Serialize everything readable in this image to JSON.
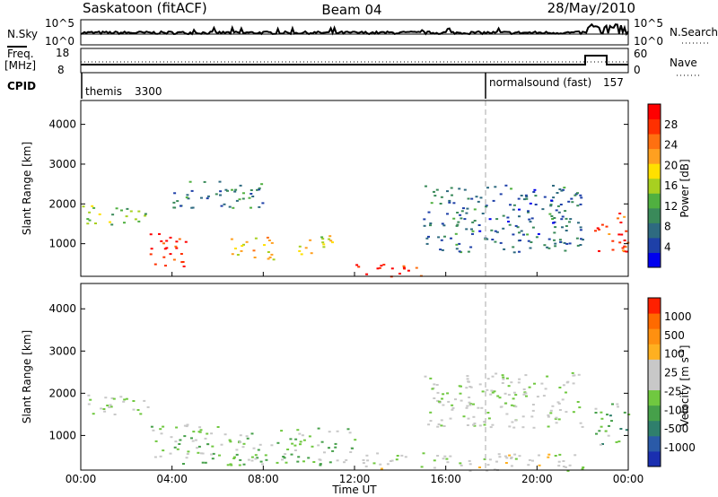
{
  "header": {
    "radar": "Saskatoon (fitACF)",
    "beam": "Beam 04",
    "date": "28/May/2010"
  },
  "top_panels": {
    "nsky_label": "N.Sky",
    "nsky_ticks": [
      "10^5",
      "10^0"
    ],
    "nsearch_label": "N.Search",
    "nsearch_ticks": [
      "10^5",
      "10^0"
    ],
    "freq_label": "Freq.",
    "freq_unit": "[MHz]",
    "freq_ticks": [
      "18",
      "8"
    ],
    "nave_label": "Nave",
    "nave_ticks": [
      "60",
      "0"
    ],
    "cpid_label": "CPID",
    "cpid_modes": [
      {
        "name": "themis",
        "id": "3300",
        "start_hour": 0
      },
      {
        "name": "normalsound (fast)",
        "id": "157",
        "start_hour": 18
      }
    ]
  },
  "colorbars": {
    "power": {
      "label": "Power [dB]",
      "ticks": [
        "28",
        "24",
        "20",
        "16",
        "12",
        "8",
        "4"
      ],
      "colors": [
        "#0000ee",
        "#1e40a8",
        "#2e6a80",
        "#3a8a5a",
        "#50b040",
        "#a8d020",
        "#ffe000",
        "#ffa020",
        "#ff7010",
        "#ff3000",
        "#ff0000"
      ]
    },
    "velocity": {
      "label": "Velocity [m s",
      "label_sup": "-1",
      "label_end": "]",
      "ticks": [
        "1000",
        "500",
        "100",
        "25",
        "-25",
        "-100",
        "-500",
        "-1000"
      ],
      "colors": [
        "#1a2fb0",
        "#2a5aa8",
        "#2f7f6c",
        "#46a04a",
        "#70c840",
        "#c8c8c8",
        "#c8c8c8",
        "#ffb020",
        "#ff9010",
        "#ff6a00",
        "#ff2000"
      ]
    }
  },
  "axes": {
    "ylabel": "Slant Range [km]",
    "yticks": [
      "4000",
      "3000",
      "2000",
      "1000"
    ],
    "xticks": [
      "00:00",
      "04:00",
      "08:00",
      "12:00",
      "16:00",
      "20:00",
      "00:00"
    ],
    "xlabel": "Time UT"
  },
  "chart_data": [
    {
      "type": "heatmap",
      "title": "Power [dB]",
      "x_range_hours": [
        0,
        24
      ],
      "y_range_km": [
        180,
        4600
      ],
      "value_range_db": [
        0,
        30
      ],
      "echo_regions": [
        {
          "t0": 0.0,
          "t1": 2.8,
          "r0": 1500,
          "r1": 2000,
          "db": 14
        },
        {
          "t0": 3.0,
          "t1": 4.6,
          "r0": 400,
          "r1": 1300,
          "db": 28
        },
        {
          "t0": 4.0,
          "t1": 8.0,
          "r0": 1900,
          "r1": 2600,
          "db": 8
        },
        {
          "t0": 6.5,
          "t1": 8.5,
          "r0": 600,
          "r1": 1200,
          "db": 20
        },
        {
          "t0": 9.5,
          "t1": 11.0,
          "r0": 700,
          "r1": 1300,
          "db": 18
        },
        {
          "t0": 12.0,
          "t1": 15.0,
          "r0": 180,
          "r1": 500,
          "db": 28
        },
        {
          "t0": 15.0,
          "t1": 22.0,
          "r0": 800,
          "r1": 2500,
          "db": 6
        },
        {
          "t0": 22.5,
          "t1": 24.0,
          "r0": 800,
          "r1": 1800,
          "db": 26
        }
      ]
    },
    {
      "type": "heatmap",
      "title": "Velocity [m s-1]",
      "x_range_hours": [
        0,
        24
      ],
      "y_range_km": [
        180,
        4600
      ],
      "value_range_ms": [
        -1000,
        1000
      ],
      "echo_regions": [
        {
          "t0": 0.0,
          "t1": 3.0,
          "r0": 1500,
          "r1": 2000,
          "vel": 0
        },
        {
          "t0": 3.0,
          "t1": 6.0,
          "r0": 300,
          "r1": 1300,
          "vel": -150
        },
        {
          "t0": 6.0,
          "t1": 12.0,
          "r0": 300,
          "r1": 1200,
          "vel": -200
        },
        {
          "t0": 12.0,
          "t1": 22.0,
          "r0": 180,
          "r1": 600,
          "vel": 50
        },
        {
          "t0": 15.0,
          "t1": 22.0,
          "r0": 1200,
          "r1": 2500,
          "vel": 0
        },
        {
          "t0": 22.5,
          "t1": 24.0,
          "r0": 800,
          "r1": 1800,
          "vel": -300
        }
      ]
    }
  ]
}
